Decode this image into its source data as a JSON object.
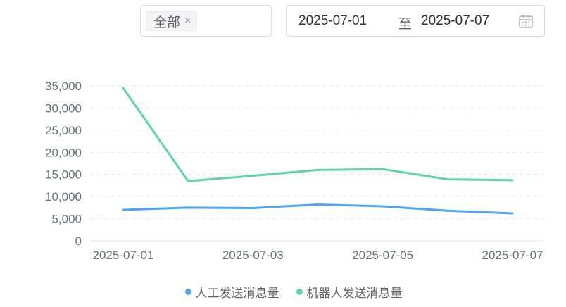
{
  "filters": {
    "tag_label": "全部",
    "tag_close": "×",
    "date_start": "2025-07-01",
    "date_separator": "至",
    "date_end": "2025-07-07",
    "calendar_icon": "calendar-icon"
  },
  "chart_data": {
    "type": "line",
    "x": [
      "2025-07-01",
      "2025-07-02",
      "2025-07-03",
      "2025-07-04",
      "2025-07-05",
      "2025-07-06",
      "2025-07-07"
    ],
    "x_tick_labels": [
      "2025-07-01",
      "2025-07-03",
      "2025-07-05",
      "2025-07-07"
    ],
    "y_tick_labels": [
      "0",
      "5,000",
      "10,000",
      "15,000",
      "20,000",
      "25,000",
      "30,000",
      "35,000"
    ],
    "ylim": [
      0,
      35000
    ],
    "grid": "horizontal dashed",
    "legend_position": "bottom",
    "series": [
      {
        "name": "人工发送消息量",
        "color": "#4ea4f5",
        "values": [
          7000,
          7500,
          7400,
          8200,
          7800,
          6800,
          6200
        ]
      },
      {
        "name": "机器人发送消息量",
        "color": "#5ed6a4",
        "values": [
          34500,
          13500,
          14700,
          16000,
          16200,
          13900,
          13700
        ]
      }
    ]
  }
}
